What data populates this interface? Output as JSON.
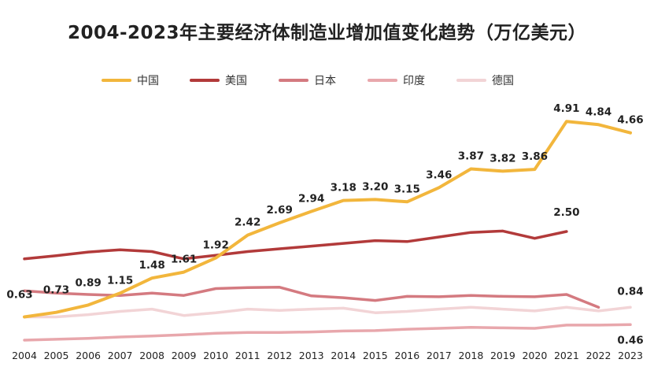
{
  "title": "2004-2023年主要经济体制造业增加值变化趋势（万亿美元）",
  "chart_data": {
    "type": "line",
    "title": "2004-2023年主要经济体制造业增加值变化趋势（万亿美元）",
    "xlabel": "",
    "ylabel": "",
    "ylim": [
      0,
      5.5
    ],
    "legend_position": "top",
    "categories": [
      "2004",
      "2005",
      "2006",
      "2007",
      "2008",
      "2009",
      "2010",
      "2011",
      "2012",
      "2013",
      "2014",
      "2015",
      "2016",
      "2017",
      "2018",
      "2019",
      "2020",
      "2021",
      "2022",
      "2023"
    ],
    "series": [
      {
        "name": "中国",
        "color": "#f2b63c",
        "values": [
          0.63,
          0.73,
          0.89,
          1.15,
          1.48,
          1.61,
          1.92,
          2.42,
          2.69,
          2.94,
          3.18,
          3.2,
          3.15,
          3.46,
          3.87,
          3.82,
          3.86,
          4.91,
          4.84,
          4.66
        ]
      },
      {
        "name": "美国",
        "color": "#b23a3a",
        "values": [
          1.9,
          1.97,
          2.05,
          2.1,
          2.06,
          1.9,
          1.98,
          2.06,
          2.12,
          2.18,
          2.24,
          2.3,
          2.28,
          2.38,
          2.48,
          2.51,
          2.35,
          2.5,
          null,
          null
        ]
      },
      {
        "name": "日本",
        "color": "#d47a80",
        "values": [
          1.2,
          1.15,
          1.12,
          1.1,
          1.15,
          1.1,
          1.25,
          1.27,
          1.28,
          1.09,
          1.05,
          0.99,
          1.08,
          1.07,
          1.1,
          1.08,
          1.07,
          1.12,
          0.84,
          null
        ]
      },
      {
        "name": "印度",
        "color": "#e8a7ac",
        "values": [
          0.12,
          0.14,
          0.16,
          0.19,
          0.21,
          0.24,
          0.27,
          0.29,
          0.29,
          0.3,
          0.32,
          0.33,
          0.36,
          0.38,
          0.4,
          0.39,
          0.38,
          0.45,
          0.45,
          0.46
        ]
      },
      {
        "name": "德国",
        "color": "#f2d4d6",
        "values": [
          0.63,
          0.63,
          0.68,
          0.75,
          0.8,
          0.66,
          0.72,
          0.8,
          0.77,
          0.8,
          0.82,
          0.72,
          0.75,
          0.8,
          0.84,
          0.8,
          0.76,
          0.84,
          0.76,
          0.84
        ]
      }
    ],
    "data_labels": [
      {
        "series": "中国",
        "year": "2004",
        "text": "0.63"
      },
      {
        "series": "中国",
        "year": "2005",
        "text": "0.73"
      },
      {
        "series": "中国",
        "year": "2006",
        "text": "0.89"
      },
      {
        "series": "中国",
        "year": "2007",
        "text": "1.15"
      },
      {
        "series": "中国",
        "year": "2008",
        "text": "1.48"
      },
      {
        "series": "中国",
        "year": "2009",
        "text": "1.61"
      },
      {
        "series": "中国",
        "year": "2010",
        "text": "1.92"
      },
      {
        "series": "中国",
        "year": "2011",
        "text": "2.42"
      },
      {
        "series": "中国",
        "year": "2012",
        "text": "2.69"
      },
      {
        "series": "中国",
        "year": "2013",
        "text": "2.94"
      },
      {
        "series": "中国",
        "year": "2014",
        "text": "3.18"
      },
      {
        "series": "中国",
        "year": "2015",
        "text": "3.20"
      },
      {
        "series": "中国",
        "year": "2016",
        "text": "3.15"
      },
      {
        "series": "中国",
        "year": "2017",
        "text": "3.46"
      },
      {
        "series": "中国",
        "year": "2018",
        "text": "3.87"
      },
      {
        "series": "中国",
        "year": "2019",
        "text": "3.82"
      },
      {
        "series": "中国",
        "year": "2020",
        "text": "3.86"
      },
      {
        "series": "中国",
        "year": "2021",
        "text": "4.91"
      },
      {
        "series": "中国",
        "year": "2022",
        "text": "4.84"
      },
      {
        "series": "中国",
        "year": "2023",
        "text": "4.66"
      },
      {
        "series": "美国",
        "year": "2021",
        "text": "2.50"
      },
      {
        "series": "德国",
        "year": "2023",
        "text": "0.84"
      },
      {
        "series": "印度",
        "year": "2023",
        "text": "0.46"
      }
    ]
  }
}
